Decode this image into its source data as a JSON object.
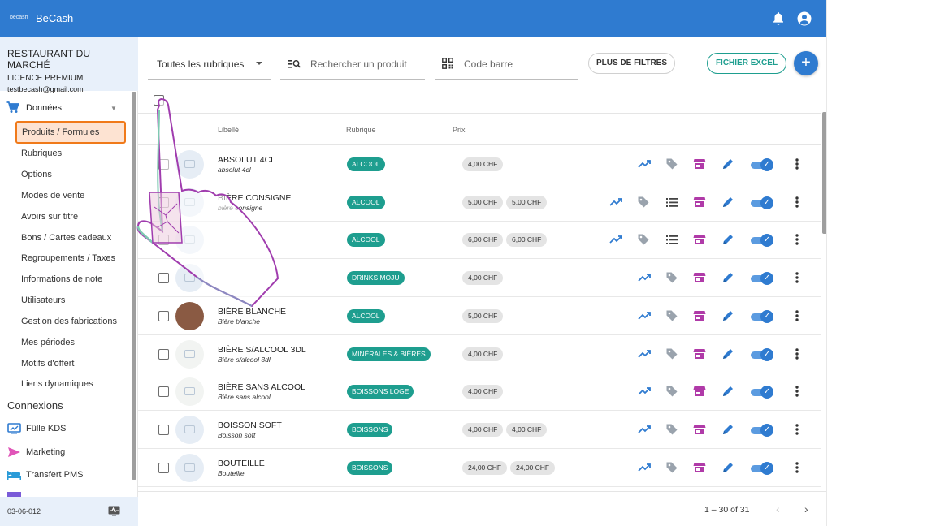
{
  "app": {
    "logo_text": "becash",
    "title": "BeCash"
  },
  "org": {
    "name": "RESTAURANT DU MARCHÉ",
    "license": "LICENCE PREMIUM",
    "email": "testbecash@gmail.com"
  },
  "sidebar": {
    "section_label": "Données",
    "items": [
      {
        "label": "Produits / Formules",
        "active": true
      },
      {
        "label": "Rubriques"
      },
      {
        "label": "Options"
      },
      {
        "label": "Modes de vente"
      },
      {
        "label": "Avoirs sur titre"
      },
      {
        "label": "Bons / Cartes cadeaux"
      },
      {
        "label": "Regroupements / Taxes"
      },
      {
        "label": "Informations de note"
      },
      {
        "label": "Utilisateurs"
      },
      {
        "label": "Gestion des fabrications"
      },
      {
        "label": "Mes périodes"
      },
      {
        "label": "Motifs d'offert"
      },
      {
        "label": "Liens dynamiques"
      }
    ],
    "connexions_title": "Connexions",
    "connexions": [
      {
        "label": "Fülle KDS",
        "icon": "kds-icon"
      },
      {
        "label": "Marketing",
        "icon": "send-icon"
      },
      {
        "label": "Transfert PMS",
        "icon": "bed-icon"
      }
    ],
    "version": "03-06-012"
  },
  "filters": {
    "rubrique": "Toutes les rubriques",
    "search_placeholder": "Rechercher un produit",
    "barcode_placeholder": "Code barre",
    "more_filters": "PLUS DE FILTRES",
    "excel": "FICHIER EXCEL",
    "add": "+"
  },
  "table": {
    "headers": {
      "label": "Libellé",
      "rubrique": "Rubrique",
      "prix": "Prix"
    },
    "rows": [
      {
        "name": "ABSOLUT 4CL",
        "sub": "absolut 4cl",
        "rubrique": "ALCOOL",
        "prices": [
          "4,00 CHF"
        ],
        "extra": false
      },
      {
        "name": "BIÈRE CONSIGNE",
        "sub": "bière consigne",
        "rubrique": "ALCOOL",
        "prices": [
          "5,00 CHF",
          "5,00 CHF"
        ],
        "extra": true
      },
      {
        "name": "",
        "sub": "",
        "rubrique": "ALCOOL",
        "prices": [
          "6,00 CHF",
          "6,00 CHF"
        ],
        "extra": true
      },
      {
        "name": "",
        "sub": "",
        "rubrique": "DRINKS MOJU",
        "prices": [
          "4,00 CHF"
        ],
        "extra": false
      },
      {
        "name": "BIÈRE BLANCHE",
        "sub": "Bière blanche",
        "rubrique": "ALCOOL",
        "prices": [
          "5,00 CHF"
        ],
        "extra": false,
        "thumb": "photo"
      },
      {
        "name": "BIÈRE S/ALCOOL 3DL",
        "sub": "Bière s/alcool 3dl",
        "rubrique": "MINÉRALES & BIÈRES",
        "prices": [
          "4,00 CHF"
        ],
        "extra": false,
        "thumb": "bottle"
      },
      {
        "name": "BIÈRE SANS ALCOOL",
        "sub": "Bière sans alcool",
        "rubrique": "BOISSONS LOGE",
        "prices": [
          "4,00 CHF"
        ],
        "extra": false,
        "thumb": "bottle"
      },
      {
        "name": "BOISSON SOFT",
        "sub": "Boisson soft",
        "rubrique": "BOISSONS",
        "prices": [
          "4,00 CHF",
          "4,00 CHF"
        ],
        "extra": false
      },
      {
        "name": "BOUTEILLE",
        "sub": "Bouteille",
        "rubrique": "BOISSONS",
        "prices": [
          "24,00 CHF",
          "24,00 CHF"
        ],
        "extra": false
      }
    ]
  },
  "pagination": {
    "text": "1 – 30 of 31"
  },
  "colors": {
    "primary": "#2f7bd0",
    "teal_badge": "#1e9e8f",
    "store_purple": "#b03aa8",
    "active_orange": "#f07a1a"
  }
}
